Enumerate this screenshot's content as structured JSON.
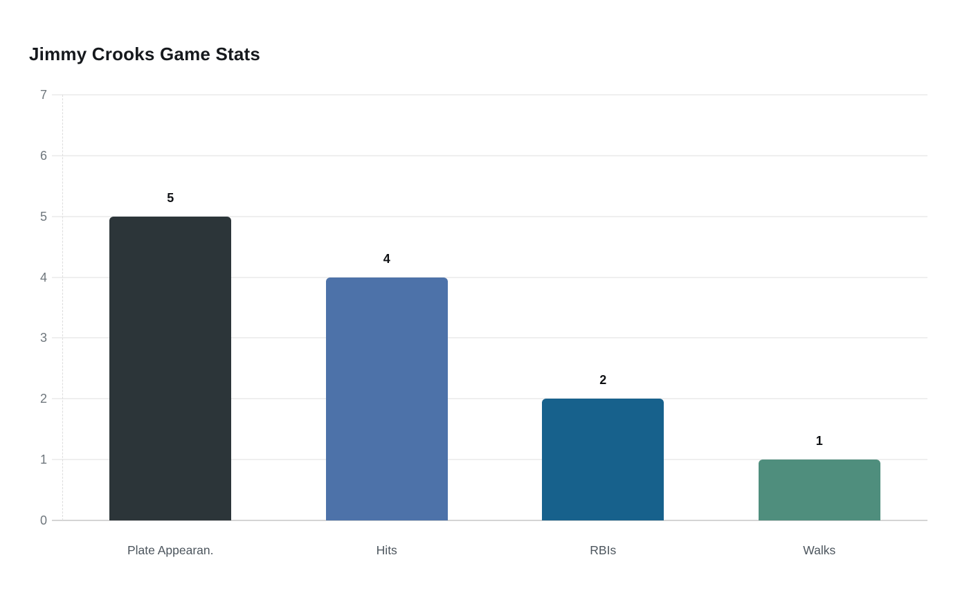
{
  "chart_data": {
    "type": "bar",
    "title": "Jimmy Crooks Game Stats",
    "categories": [
      "Plate Appearan.",
      "Hits",
      "RBIs",
      "Walks"
    ],
    "values": [
      5,
      4,
      2,
      1
    ],
    "value_labels": [
      "5",
      "4",
      "2",
      "1"
    ],
    "bar_colors": [
      "#2c3539",
      "#4d72a9",
      "#17618c",
      "#4f8e7d"
    ],
    "xlabel": "",
    "ylabel": "",
    "ylim": [
      0,
      7
    ],
    "yticks": [
      0,
      1,
      2,
      3,
      4,
      5,
      6,
      7
    ],
    "grid": "horizontal",
    "legend": "none",
    "colors": {
      "background": "#ffffff",
      "title": "#16191d",
      "y_tick_label": "#6e767c",
      "x_tick_label": "#4c555d",
      "value_label": "#0f1114",
      "gridline": "#efefef",
      "baseline": "#d4d4d4",
      "axis_dash": "#dcdcdc"
    }
  }
}
